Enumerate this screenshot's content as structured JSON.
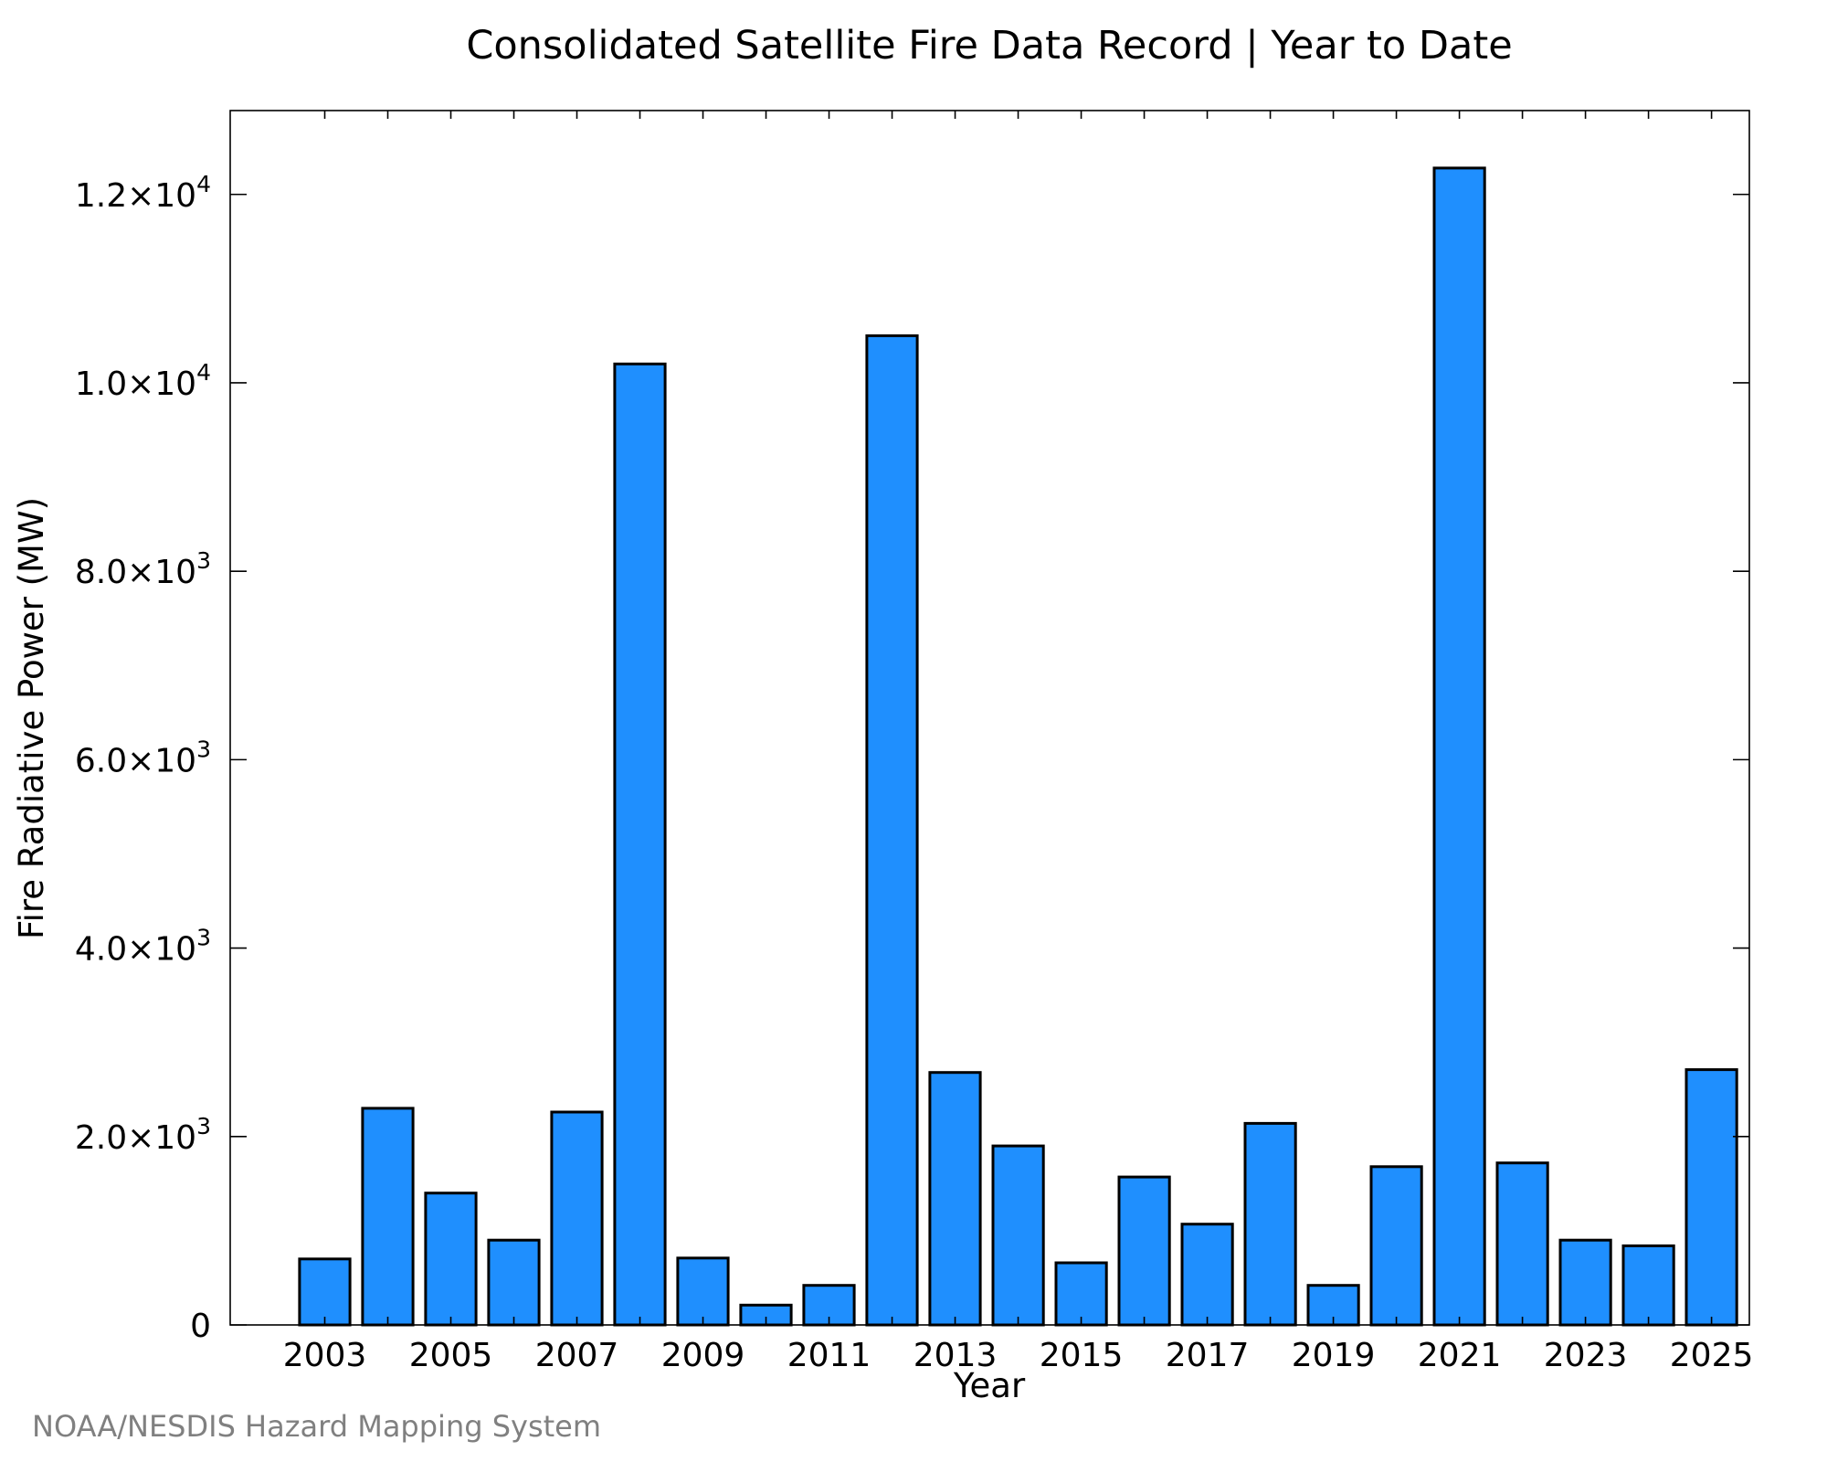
{
  "chart_data": {
    "type": "bar",
    "title": "Consolidated Satellite Fire Data Record | Year to Date",
    "xlabel": "Year",
    "ylabel": "Fire Radiative Power (MW)",
    "categories": [
      2003,
      2004,
      2005,
      2006,
      2007,
      2008,
      2009,
      2010,
      2011,
      2012,
      2013,
      2014,
      2015,
      2016,
      2017,
      2018,
      2019,
      2020,
      2021,
      2022,
      2023,
      2024,
      2025
    ],
    "values": [
      700,
      2300,
      1400,
      900,
      2260,
      10200,
      710,
      210,
      420,
      10500,
      2680,
      1900,
      660,
      1570,
      1070,
      2140,
      420,
      1680,
      12280,
      1720,
      900,
      840,
      2710
    ],
    "x_tick_labels": [
      "2003",
      "2005",
      "2007",
      "2009",
      "2011",
      "2013",
      "2015",
      "2017",
      "2019",
      "2021",
      "2023",
      "2025"
    ],
    "y_ticks": [
      {
        "value": 0,
        "mantissa": "0",
        "exponent": ""
      },
      {
        "value": 2000,
        "mantissa": "2.0×10",
        "exponent": "3"
      },
      {
        "value": 4000,
        "mantissa": "4.0×10",
        "exponent": "3"
      },
      {
        "value": 6000,
        "mantissa": "6.0×10",
        "exponent": "3"
      },
      {
        "value": 8000,
        "mantissa": "8.0×10",
        "exponent": "3"
      },
      {
        "value": 10000,
        "mantissa": "1.0×10",
        "exponent": "4"
      },
      {
        "value": 12000,
        "mantissa": "1.2×10",
        "exponent": "4"
      }
    ],
    "ylim": [
      0,
      12890
    ],
    "xlim": [
      2001.5,
      2025.6
    ],
    "grid": false,
    "bar_color": "#1f8ffe",
    "bar_edge_color": "#000000"
  },
  "credit": "NOAA/NESDIS Hazard Mapping System"
}
